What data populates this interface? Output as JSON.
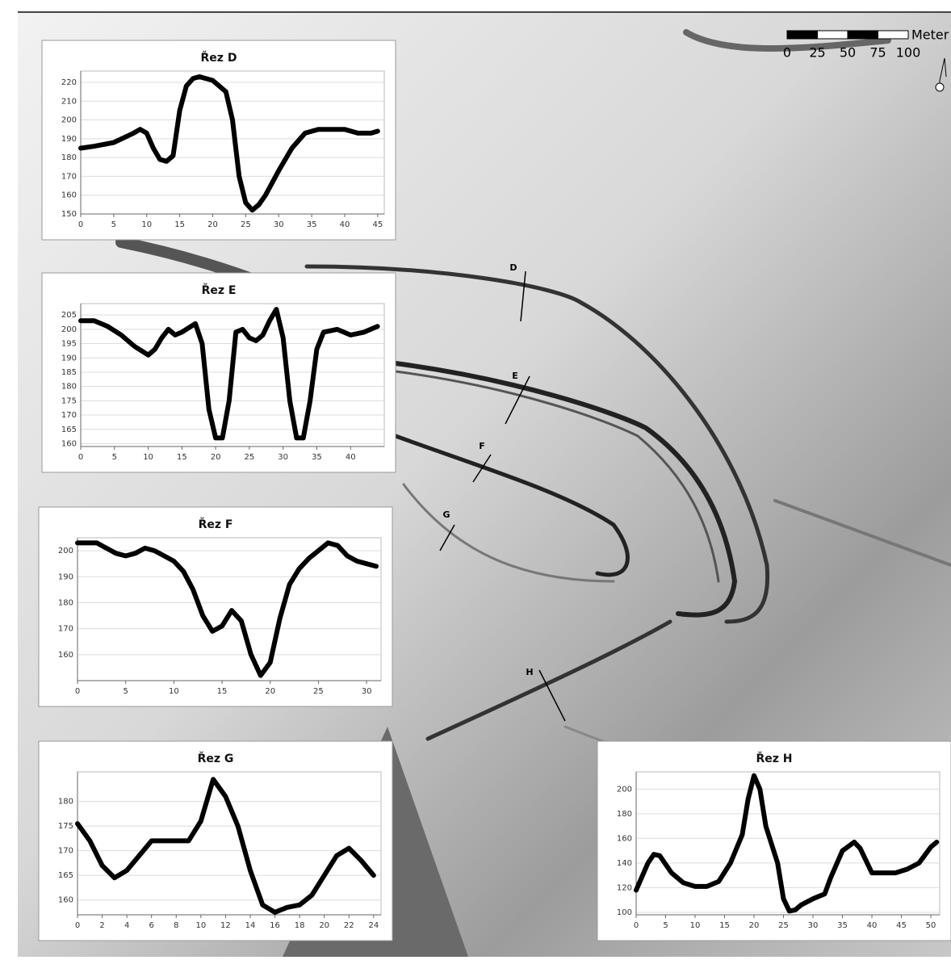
{
  "chart_data": [
    {
      "type": "line",
      "title": "Řez D",
      "color": "#000000",
      "grid": true,
      "x": [
        0,
        2,
        5,
        8,
        9,
        10,
        11,
        12,
        13,
        14,
        15,
        16,
        17,
        18,
        20,
        22,
        23,
        24,
        25,
        26,
        27,
        28,
        30,
        32,
        34,
        36,
        38,
        40,
        42,
        44,
        45
      ],
      "values": [
        185,
        186,
        188,
        193,
        195,
        193,
        185,
        179,
        178,
        181,
        205,
        218,
        222,
        223,
        221,
        215,
        200,
        170,
        156,
        152,
        155,
        160,
        173,
        185,
        193,
        195,
        195,
        195,
        193,
        193,
        194
      ],
      "xlim": [
        0,
        46
      ],
      "xticks": [
        0,
        5,
        10,
        15,
        20,
        25,
        30,
        35,
        40,
        45
      ],
      "ylim": [
        150,
        226
      ],
      "yticks": [
        150,
        160,
        170,
        180,
        190,
        200,
        210,
        220
      ]
    },
    {
      "type": "line",
      "title": "Řez E",
      "color": "#000000",
      "grid": true,
      "x": [
        0,
        2,
        4,
        6,
        8,
        10,
        11,
        12,
        13,
        14,
        15,
        17,
        18,
        19,
        20,
        21,
        22,
        23,
        24,
        25,
        26,
        27,
        28,
        29,
        30,
        31,
        32,
        33,
        34,
        35,
        36,
        38,
        40,
        42,
        44
      ],
      "values": [
        203,
        203,
        201,
        198,
        194,
        191,
        193,
        197,
        200,
        198,
        199,
        202,
        195,
        172,
        162,
        162,
        175,
        199,
        200,
        197,
        196,
        198,
        203,
        207,
        197,
        175,
        162,
        162,
        175,
        193,
        199,
        200,
        198,
        199,
        201
      ],
      "xlim": [
        0,
        45
      ],
      "xticks": [
        0,
        5,
        10,
        15,
        20,
        25,
        30,
        35,
        40
      ],
      "ylim": [
        159,
        209
      ],
      "yticks": [
        160,
        165,
        170,
        175,
        180,
        185,
        190,
        195,
        200,
        205
      ]
    },
    {
      "type": "line",
      "title": "Řez F",
      "color": "#000000",
      "grid": true,
      "x": [
        0,
        2,
        3,
        4,
        5,
        6,
        7,
        8,
        9,
        10,
        11,
        12,
        13,
        14,
        15,
        16,
        17,
        18,
        19,
        20,
        21,
        22,
        23,
        24,
        25,
        26,
        27,
        28,
        29,
        30,
        31
      ],
      "values": [
        203,
        203,
        201,
        199,
        198,
        199,
        201,
        200,
        198,
        196,
        192,
        185,
        175,
        169,
        171,
        177,
        173,
        160,
        152,
        157,
        174,
        187,
        193,
        197,
        200,
        203,
        202,
        198,
        196,
        195,
        194
      ],
      "xlim": [
        0,
        31.5
      ],
      "xticks": [
        0,
        5,
        10,
        15,
        20,
        25,
        30
      ],
      "ylim": [
        150,
        205
      ],
      "yticks": [
        160,
        170,
        180,
        190,
        200
      ]
    },
    {
      "type": "line",
      "title": "Řez G",
      "color": "#000000",
      "grid": true,
      "x": [
        0,
        1,
        2,
        3,
        4,
        5,
        6,
        7,
        8,
        9,
        10,
        11,
        12,
        13,
        14,
        15,
        16,
        17,
        18,
        19,
        20,
        21,
        22,
        23,
        24
      ],
      "values": [
        175.5,
        172,
        167,
        164.5,
        166,
        169,
        172,
        172,
        172,
        172,
        176,
        184.5,
        181,
        175,
        166,
        159,
        157.5,
        158.5,
        159,
        161,
        165,
        169,
        170.5,
        168,
        165
      ],
      "xlim": [
        0,
        24.6
      ],
      "xticks": [
        0,
        2,
        4,
        6,
        8,
        10,
        12,
        14,
        16,
        18,
        20,
        22,
        24
      ],
      "ylim": [
        157,
        186
      ],
      "yticks": [
        160,
        165,
        170,
        175,
        180
      ]
    },
    {
      "type": "line",
      "title": "Řez H",
      "color": "#000000",
      "grid": true,
      "x": [
        0,
        2,
        3,
        4,
        6,
        8,
        10,
        12,
        14,
        16,
        18,
        19,
        20,
        21,
        22,
        24,
        25,
        26,
        27,
        28,
        30,
        32,
        33,
        35,
        37,
        38,
        40,
        42,
        44,
        46,
        48,
        50,
        51
      ],
      "values": [
        118,
        140,
        147,
        146,
        132,
        124,
        121,
        121,
        125,
        140,
        163,
        192,
        211,
        200,
        170,
        140,
        111,
        101,
        102,
        106,
        111,
        115,
        128,
        150,
        157,
        152,
        132,
        132,
        132,
        135,
        140,
        153,
        157
      ],
      "xlim": [
        0,
        51.5
      ],
      "xticks": [
        0,
        5,
        10,
        15,
        20,
        25,
        30,
        35,
        40,
        45,
        50
      ],
      "ylim": [
        98,
        214
      ],
      "yticks": [
        100,
        120,
        140,
        160,
        180,
        200
      ]
    }
  ],
  "map": {
    "section_labels": [
      "D",
      "E",
      "F",
      "G",
      "H"
    ],
    "scale_bar": {
      "unit": "Meter",
      "ticks": [
        0,
        25,
        50,
        75,
        100
      ]
    }
  }
}
